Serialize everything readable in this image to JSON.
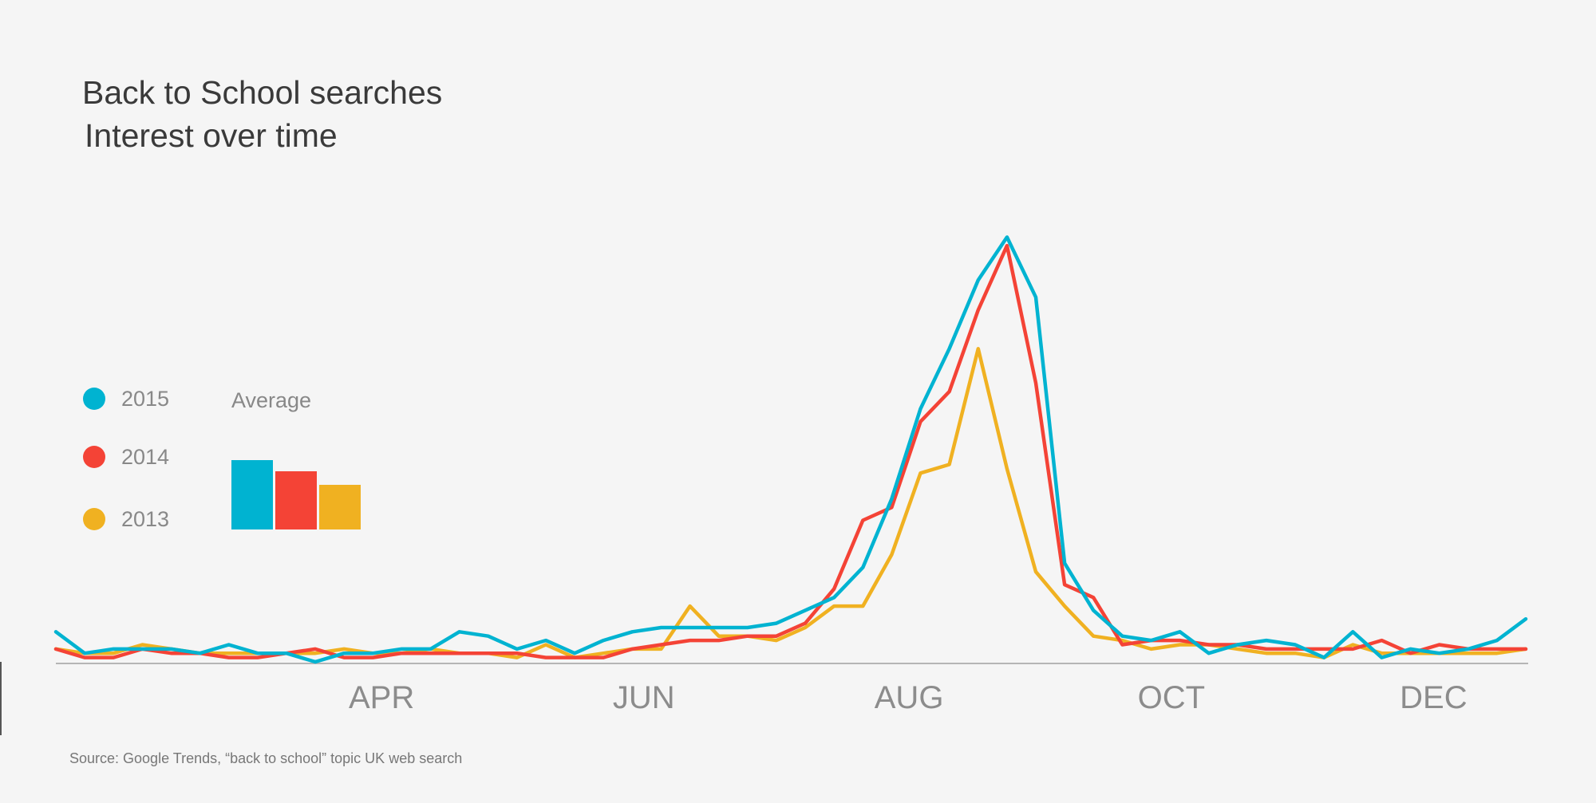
{
  "chart_data": {
    "type": "line",
    "title": "Back to School searches",
    "subtitle": "Interest over time",
    "xlabel": "",
    "ylabel": "",
    "x_range": [
      1,
      52
    ],
    "ylim": [
      0,
      100
    ],
    "grid": false,
    "legend_position": "left",
    "x_ticks": [
      {
        "label": "APR",
        "week": 12.3
      },
      {
        "label": "JUN",
        "week": 21.4
      },
      {
        "label": "AUG",
        "week": 30.6
      },
      {
        "label": "OCT",
        "week": 39.7
      },
      {
        "label": "DEC",
        "week": 48.8
      }
    ],
    "series": [
      {
        "name": "2015",
        "color": "#00b3d1",
        "values": [
          7,
          2,
          3,
          3,
          3,
          2,
          4,
          2,
          2,
          0,
          2,
          2,
          3,
          3,
          7,
          6,
          3,
          5,
          2,
          5,
          7,
          8,
          8,
          8,
          8,
          9,
          12,
          15,
          22,
          38,
          59,
          73,
          89,
          99,
          85,
          23,
          12,
          6,
          5,
          7,
          2,
          4,
          5,
          4,
          1,
          7,
          1,
          3,
          2,
          3,
          5,
          10
        ],
        "average": 25
      },
      {
        "name": "2014",
        "color": "#f44336",
        "values": [
          3,
          1,
          1,
          3,
          2,
          2,
          1,
          1,
          2,
          3,
          1,
          1,
          2,
          2,
          2,
          2,
          2,
          1,
          1,
          1,
          3,
          4,
          5,
          5,
          6,
          6,
          9,
          17,
          33,
          36,
          56,
          63,
          82,
          97,
          65,
          18,
          15,
          4,
          5,
          5,
          4,
          4,
          3,
          3,
          3,
          3,
          5,
          2,
          4,
          3,
          3,
          3
        ],
        "average": 21
      },
      {
        "name": "2013",
        "color": "#f0b121",
        "values": [
          3,
          2,
          2,
          4,
          3,
          2,
          2,
          2,
          2,
          2,
          3,
          2,
          2,
          3,
          2,
          2,
          1,
          4,
          1,
          2,
          3,
          3,
          13,
          6,
          6,
          5,
          8,
          13,
          13,
          25,
          44,
          46,
          73,
          45,
          21,
          13,
          6,
          5,
          3,
          4,
          4,
          3,
          2,
          2,
          1,
          4,
          2,
          2,
          2,
          2,
          2,
          3
        ],
        "average": 16
      }
    ]
  },
  "legend": {
    "average_label": "Average",
    "items": [
      {
        "label": "2015",
        "color": "#00b3d1"
      },
      {
        "label": "2014",
        "color": "#f44336"
      },
      {
        "label": "2013",
        "color": "#f0b121"
      }
    ]
  },
  "source": "Source: Google Trends, “back to school” topic UK web search"
}
